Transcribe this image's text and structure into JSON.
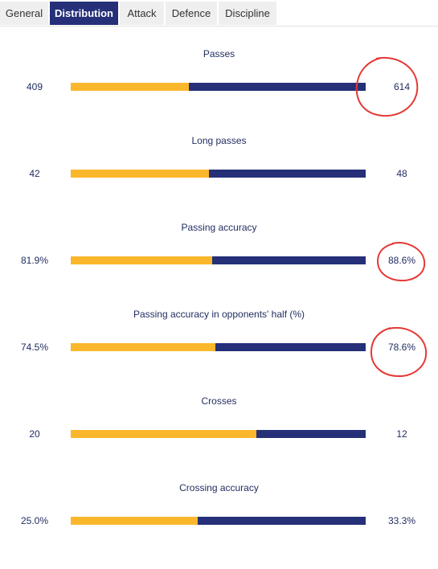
{
  "tabs": [
    {
      "label": "General",
      "active": false
    },
    {
      "label": "Distribution",
      "active": true
    },
    {
      "label": "Attack",
      "active": false
    },
    {
      "label": "Defence",
      "active": false
    },
    {
      "label": "Discipline",
      "active": false
    }
  ],
  "colors": {
    "left_team": "#fbb72b",
    "right_team": "#253078",
    "annotation": "#e53935"
  },
  "stats": [
    {
      "title": "Passes",
      "left": "409",
      "right": "614",
      "left_share": 0.4,
      "circled": true
    },
    {
      "title": "Long passes",
      "left": "42",
      "right": "48",
      "left_share": 0.47,
      "circled": false
    },
    {
      "title": "Passing accuracy",
      "left": "81.9%",
      "right": "88.6%",
      "left_share": 0.48,
      "circled": true
    },
    {
      "title": "Passing accuracy in opponents' half (%)",
      "left": "74.5%",
      "right": "78.6%",
      "left_share": 0.49,
      "circled": true
    },
    {
      "title": "Crosses",
      "left": "20",
      "right": "12",
      "left_share": 0.63,
      "circled": false
    },
    {
      "title": "Crossing accuracy",
      "left": "25.0%",
      "right": "33.3%",
      "left_share": 0.43,
      "circled": false
    }
  ]
}
